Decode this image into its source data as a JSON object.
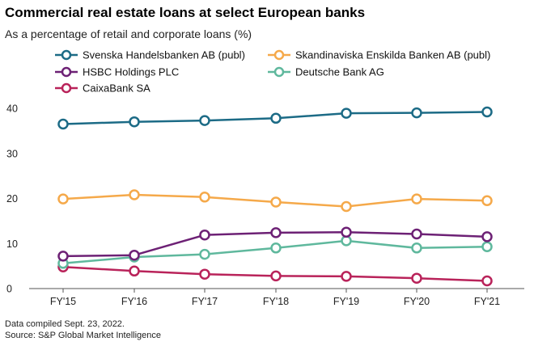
{
  "chart_data": {
    "type": "line",
    "title": "Commercial real estate loans at select European banks",
    "subtitle": "As a percentage of retail and corporate loans (%)",
    "xlabel": "",
    "ylabel": "",
    "categories": [
      "FY'15",
      "FY'16",
      "FY'17",
      "FY'18",
      "FY'19",
      "FY'20",
      "FY'21"
    ],
    "ylim": [
      0,
      40
    ],
    "yticks": [
      0,
      10,
      20,
      30,
      40
    ],
    "grid": false,
    "legend_position": "top",
    "series": [
      {
        "name": "Svenska Handelsbanken AB (publ)",
        "color": "#1c6b86",
        "values": [
          36.5,
          37.0,
          37.3,
          37.8,
          38.9,
          39.0,
          39.2
        ]
      },
      {
        "name": "Skandinaviska Enskilda Banken AB (publ)",
        "color": "#f5a94a",
        "values": [
          19.9,
          20.8,
          20.3,
          19.2,
          18.2,
          19.9,
          19.5
        ]
      },
      {
        "name": "HSBC Holdings PLC",
        "color": "#6d2175",
        "values": [
          7.2,
          7.4,
          11.9,
          12.4,
          12.5,
          12.1,
          11.5
        ]
      },
      {
        "name": "Deutsche Bank AG",
        "color": "#5fb89d",
        "values": [
          5.6,
          7.0,
          7.6,
          9.0,
          10.6,
          9.0,
          9.3
        ]
      },
      {
        "name": "CaixaBank SA",
        "color": "#b9235a",
        "values": [
          4.8,
          3.9,
          3.2,
          2.8,
          2.7,
          2.3,
          1.7
        ]
      }
    ]
  },
  "footer": {
    "note": "Data compiled Sept. 23, 2022.",
    "source": "Source: S&P Global Market Intelligence"
  }
}
